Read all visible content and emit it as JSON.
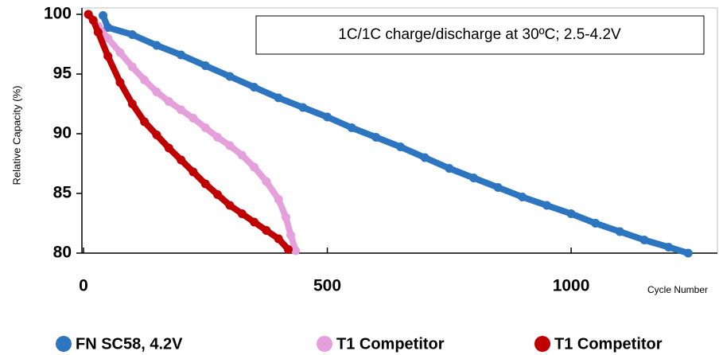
{
  "chart_data": {
    "type": "scatter",
    "annotation": "1C/1C charge/discharge at 30ºC; 2.5-4.2V",
    "y_label": "Relative Capacity (%)",
    "x_label": "Cycle Number",
    "xlim": [
      0,
      1300
    ],
    "xticks": [
      0,
      500,
      1000
    ],
    "ylim": [
      80,
      100
    ],
    "yticks": [
      80,
      85,
      90,
      95,
      100
    ],
    "grid": false,
    "legend": "bottom",
    "series": [
      {
        "name": "FN SC58, 4.2V",
        "color": "#2e75c0",
        "x": [
          40,
          50,
          100,
          150,
          200,
          250,
          300,
          350,
          400,
          450,
          500,
          550,
          600,
          650,
          700,
          750,
          800,
          850,
          900,
          950,
          1000,
          1050,
          1100,
          1150,
          1200,
          1240
        ],
        "values": [
          99.9,
          98.9,
          98.3,
          97.4,
          96.6,
          95.7,
          94.8,
          93.9,
          93.0,
          92.2,
          91.4,
          90.5,
          89.7,
          88.9,
          88.0,
          87.1,
          86.3,
          85.5,
          84.7,
          84.0,
          83.3,
          82.5,
          81.8,
          81.1,
          80.5,
          80.0
        ]
      },
      {
        "name": "T1 Competitor",
        "color": "#e59fdb",
        "x": [
          10,
          30,
          50,
          75,
          100,
          125,
          150,
          175,
          200,
          225,
          250,
          275,
          300,
          325,
          350,
          375,
          400,
          415,
          425,
          435
        ],
        "values": [
          100,
          99,
          98,
          96.8,
          95.6,
          94.5,
          93.5,
          92.7,
          92,
          91.3,
          90.5,
          89.7,
          89,
          88.2,
          87.2,
          86,
          84.5,
          83,
          81.5,
          80.2
        ]
      },
      {
        "name": "T1 Competitor",
        "color": "#c00000",
        "x": [
          10,
          20,
          30,
          50,
          75,
          100,
          125,
          150,
          175,
          200,
          225,
          250,
          275,
          300,
          325,
          350,
          375,
          400,
          420
        ],
        "values": [
          100,
          99.5,
          98.5,
          96.5,
          94.3,
          92.5,
          91,
          89.9,
          88.8,
          87.8,
          86.8,
          85.8,
          84.9,
          84.0,
          83.3,
          82.6,
          81.9,
          81.2,
          80.3
        ]
      }
    ]
  }
}
